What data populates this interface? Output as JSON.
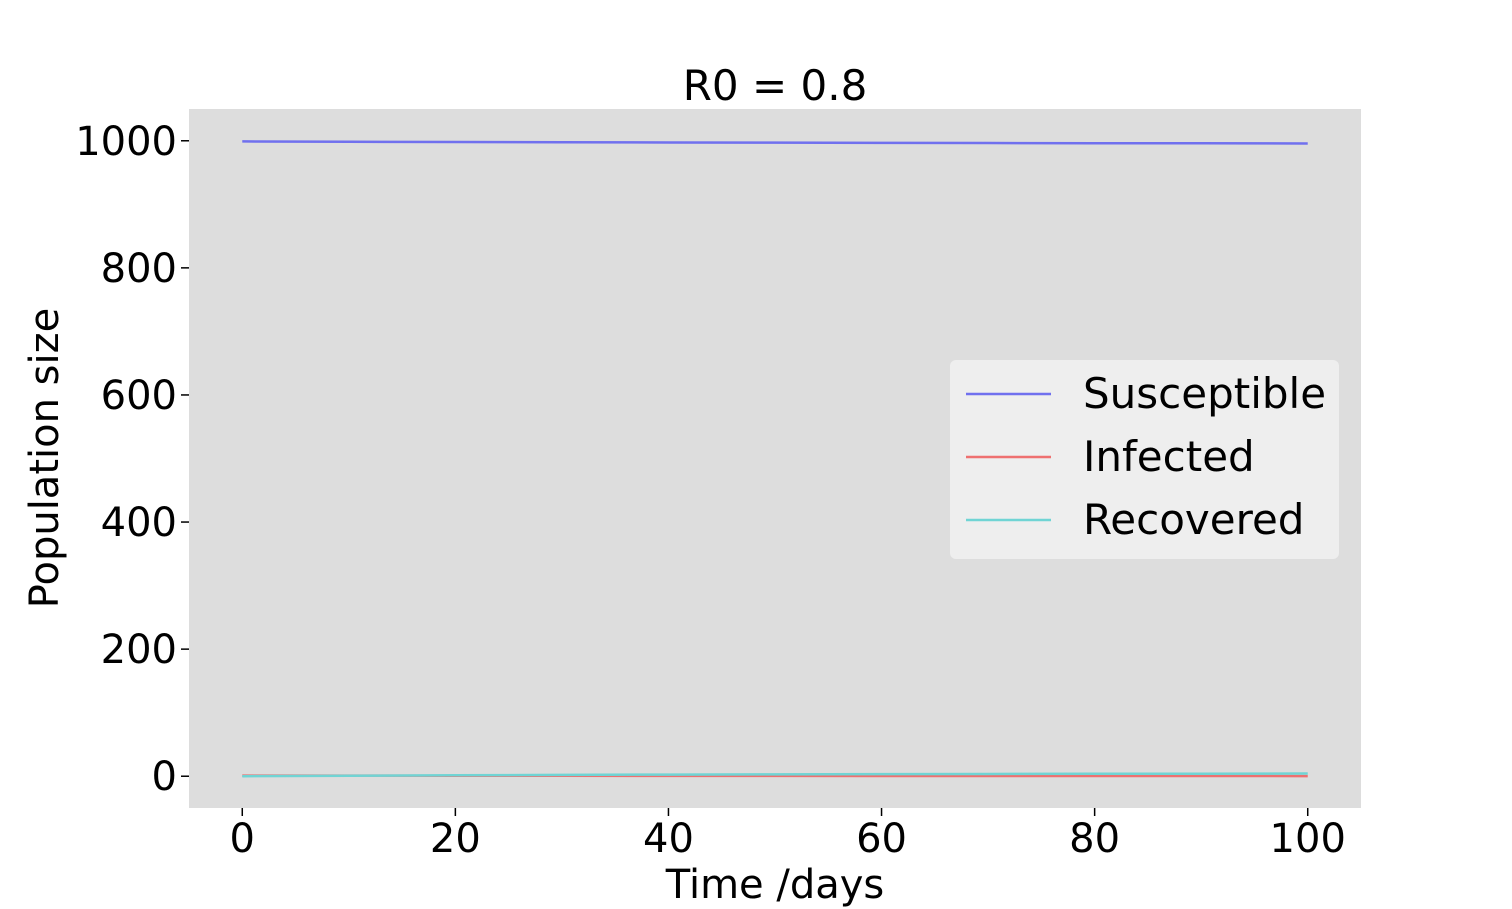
{
  "chart_data": {
    "type": "line",
    "title": "R0 = 0.8",
    "xlabel": "Time /days",
    "ylabel": "Population size",
    "xlim": [
      -5,
      105
    ],
    "ylim": [
      -50,
      1050
    ],
    "xticks": [
      0,
      20,
      40,
      60,
      80,
      100
    ],
    "yticks": [
      0,
      200,
      400,
      600,
      800,
      1000
    ],
    "x": [
      0,
      10,
      20,
      30,
      40,
      50,
      60,
      70,
      80,
      90,
      100
    ],
    "series": [
      {
        "name": "Susceptible",
        "color": "#7070ee",
        "values": [
          999,
          998.5,
          998,
          997.7,
          997.3,
          997,
          996.7,
          996.4,
          996.2,
          996,
          995.8
        ]
      },
      {
        "name": "Infected",
        "color": "#ee7070",
        "values": [
          1,
          0.9,
          0.8,
          0.7,
          0.6,
          0.5,
          0.45,
          0.4,
          0.35,
          0.3,
          0.25
        ]
      },
      {
        "name": "Recovered",
        "color": "#70d4d4",
        "values": [
          0,
          0.8,
          1.5,
          2.1,
          2.6,
          3.0,
          3.3,
          3.6,
          3.8,
          4.0,
          4.2
        ]
      }
    ],
    "grid": false,
    "background": "#dddddd",
    "legend": {
      "placement": "center-right",
      "background": "#eeeeee"
    }
  }
}
